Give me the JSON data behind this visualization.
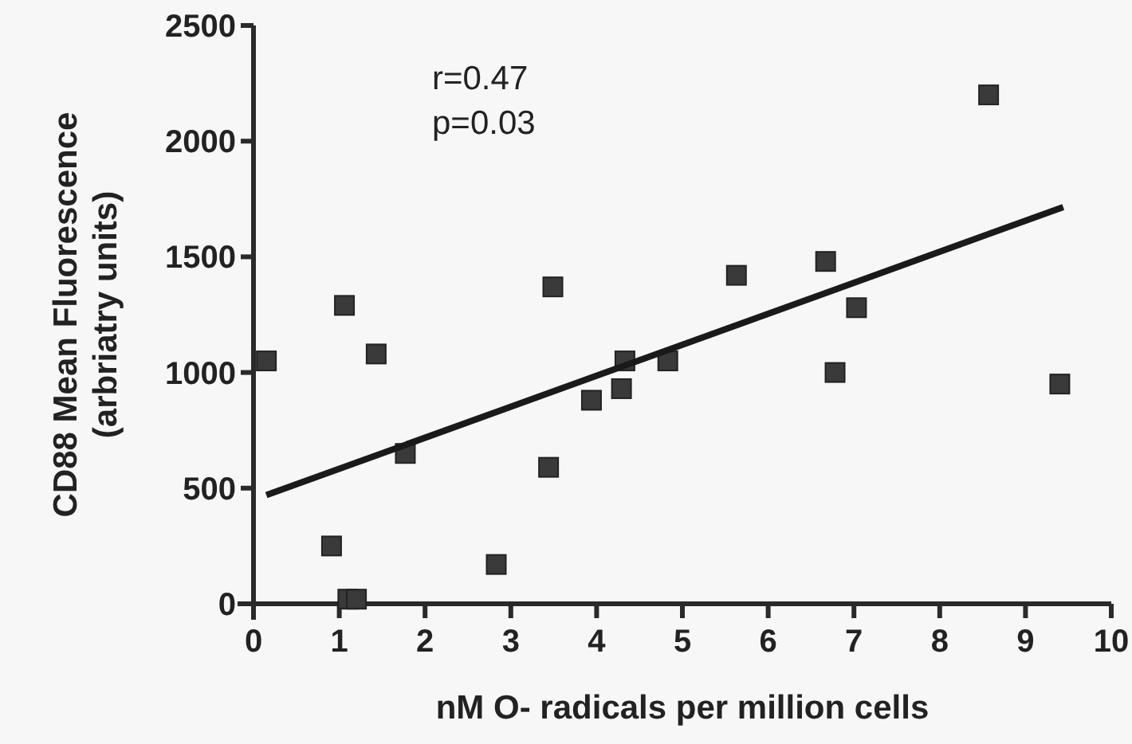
{
  "chart_data": {
    "type": "scatter",
    "xlabel": "nM O- radicals per million cells",
    "ylabel": "CD88 Mean Fluorescence\n(arbriatry units)",
    "annotations": [
      "r=0.47",
      "p=0.03"
    ],
    "xlim": [
      0,
      10
    ],
    "ylim": [
      0,
      2500
    ],
    "xticks": [
      0,
      1,
      2,
      3,
      4,
      5,
      6,
      7,
      8,
      9,
      10
    ],
    "yticks": [
      0,
      500,
      1000,
      1500,
      2000,
      2500
    ],
    "grid": false,
    "series": [
      {
        "marker": "square",
        "color": "#3a3a3a",
        "x": [
          0.15,
          1.06,
          1.43,
          0.91,
          1.1,
          1.2,
          1.77,
          2.83,
          3.44,
          3.49,
          3.94,
          4.29,
          4.33,
          4.83,
          5.63,
          6.67,
          6.78,
          7.03,
          8.57,
          9.4
        ],
        "values": [
          1050,
          1290,
          1080,
          250,
          20,
          20,
          650,
          170,
          590,
          1370,
          880,
          930,
          1050,
          1050,
          1420,
          1480,
          1000,
          1280,
          2200,
          950
        ]
      },
      {
        "type": "line",
        "color": "#1a1a1a",
        "x": [
          0.15,
          9.44
        ],
        "values": [
          470,
          1715
        ]
      }
    ]
  }
}
